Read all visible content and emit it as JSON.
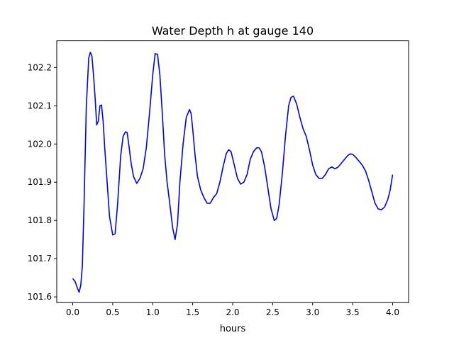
{
  "chart_data": {
    "type": "line",
    "title": "Water Depth h at gauge 140",
    "xlabel": "hours",
    "ylabel": "",
    "xlim": [
      -0.2,
      4.2
    ],
    "ylim": [
      101.585,
      102.27
    ],
    "xticks": [
      0.0,
      0.5,
      1.0,
      1.5,
      2.0,
      2.5,
      3.0,
      3.5,
      4.0
    ],
    "xtick_labels": [
      "0.0",
      "0.5",
      "1.0",
      "1.5",
      "2.0",
      "2.5",
      "3.0",
      "3.5",
      "4.0"
    ],
    "yticks": [
      101.6,
      101.7,
      101.8,
      101.9,
      102.0,
      102.1,
      102.2
    ],
    "ytick_labels": [
      "101.6",
      "101.7",
      "101.8",
      "101.9",
      "102.0",
      "102.1",
      "102.2"
    ],
    "grid": false,
    "series": [
      {
        "color": "#0000ff",
        "x": [
          0.0,
          0.03,
          0.06,
          0.08,
          0.1,
          0.12,
          0.14,
          0.17,
          0.2,
          0.22,
          0.24,
          0.26,
          0.28,
          0.3,
          0.32,
          0.34,
          0.36,
          0.38,
          0.4,
          0.43,
          0.46,
          0.5,
          0.53,
          0.56,
          0.6,
          0.63,
          0.66,
          0.68,
          0.7,
          0.73,
          0.76,
          0.8,
          0.84,
          0.88,
          0.92,
          0.96,
          1.0,
          1.03,
          1.06,
          1.09,
          1.12,
          1.15,
          1.18,
          1.21,
          1.25,
          1.28,
          1.31,
          1.34,
          1.38,
          1.42,
          1.46,
          1.48,
          1.5,
          1.53,
          1.56,
          1.6,
          1.64,
          1.68,
          1.72,
          1.76,
          1.8,
          1.84,
          1.88,
          1.92,
          1.95,
          1.98,
          2.02,
          2.06,
          2.1,
          2.14,
          2.18,
          2.22,
          2.26,
          2.3,
          2.33,
          2.36,
          2.4,
          2.44,
          2.48,
          2.52,
          2.55,
          2.58,
          2.62,
          2.66,
          2.7,
          2.73,
          2.76,
          2.8,
          2.84,
          2.88,
          2.92,
          2.96,
          3.0,
          3.04,
          3.08,
          3.12,
          3.16,
          3.2,
          3.24,
          3.28,
          3.32,
          3.36,
          3.4,
          3.44,
          3.47,
          3.5,
          3.54,
          3.58,
          3.62,
          3.66,
          3.7,
          3.74,
          3.78,
          3.82,
          3.86,
          3.9,
          3.94,
          3.97,
          4.0
        ],
        "y": [
          101.648,
          101.64,
          101.622,
          101.612,
          101.63,
          101.68,
          101.83,
          102.1,
          102.225,
          102.24,
          102.23,
          102.18,
          102.12,
          102.05,
          102.06,
          102.1,
          102.102,
          102.06,
          101.99,
          101.9,
          101.81,
          101.762,
          101.765,
          101.84,
          101.97,
          102.02,
          102.032,
          102.03,
          102.0,
          101.95,
          101.915,
          101.897,
          101.91,
          101.935,
          101.99,
          102.08,
          102.18,
          102.236,
          102.235,
          102.18,
          102.08,
          101.97,
          101.9,
          101.85,
          101.78,
          101.75,
          101.79,
          101.9,
          102.0,
          102.07,
          102.09,
          102.08,
          102.04,
          101.97,
          101.915,
          101.88,
          101.86,
          101.845,
          101.845,
          101.86,
          101.87,
          101.9,
          101.94,
          101.975,
          101.985,
          101.98,
          101.945,
          101.91,
          101.895,
          101.9,
          101.92,
          101.96,
          101.98,
          101.99,
          101.99,
          101.98,
          101.94,
          101.885,
          101.83,
          101.8,
          101.805,
          101.84,
          101.92,
          102.02,
          102.1,
          102.122,
          102.125,
          102.105,
          102.07,
          102.04,
          102.02,
          101.985,
          101.945,
          101.92,
          101.91,
          101.91,
          101.92,
          101.935,
          101.94,
          101.935,
          101.94,
          101.95,
          101.96,
          101.97,
          101.974,
          101.973,
          101.965,
          101.955,
          101.945,
          101.93,
          101.905,
          101.875,
          101.845,
          101.83,
          101.828,
          101.835,
          101.855,
          101.88,
          101.92
        ]
      }
    ]
  }
}
